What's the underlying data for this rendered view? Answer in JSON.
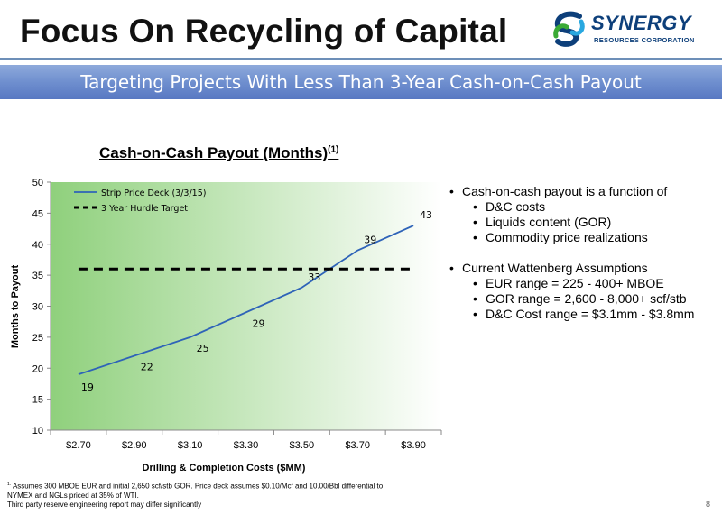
{
  "slide": {
    "title": "Focus On Recycling of Capital",
    "banner": "Targeting Projects With Less Than 3-Year Cash-on-Cash Payout",
    "page_number": "8"
  },
  "logo": {
    "name": "SYNERGY",
    "subtitle": "RESOURCES CORPORATION"
  },
  "chart_title": {
    "text": "Cash-on-Cash Payout (Months)",
    "superscript": "(1)"
  },
  "chart_data": {
    "type": "line",
    "title": "Cash-on-Cash Payout (Months)",
    "xlabel": "Drilling & Completion Costs ($MM)",
    "ylabel": "Months to Payout",
    "categories": [
      "$2.70",
      "$2.90",
      "$3.10",
      "$3.30",
      "$3.50",
      "$3.70",
      "$3.90"
    ],
    "ylim": [
      10,
      50
    ],
    "yticks": [
      10,
      15,
      20,
      25,
      30,
      35,
      40,
      45,
      50
    ],
    "grid": false,
    "legend_position": "top-left",
    "series": [
      {
        "name": "Strip Price Deck (3/3/15)",
        "values": [
          19,
          22,
          25,
          29,
          33,
          39,
          43
        ],
        "color": "#2e63b8",
        "style": "solid",
        "data_labels": [
          "19",
          "22",
          "25",
          "29",
          "33",
          "39",
          "43"
        ]
      },
      {
        "name": "3 Year Hurdle Target",
        "values": [
          36,
          36,
          36,
          36,
          36,
          36,
          36
        ],
        "color": "#000000",
        "style": "dashed"
      }
    ],
    "background_gradient": [
      "#8fd07c",
      "#ffffff"
    ]
  },
  "bullets": [
    {
      "text": "Cash-on-cash payout is a function of",
      "sub": [
        "D&C costs",
        "Liquids content (GOR)",
        "Commodity price realizations"
      ]
    },
    {
      "text": "Current Wattenberg Assumptions",
      "sub": [
        "EUR range = 225 - 400+ MBOE",
        "GOR range = 2,600 - 8,000+ scf/stb",
        "D&C Cost range = $3.1mm - $3.8mm"
      ]
    }
  ],
  "footnote": {
    "marker": "1.",
    "line1": "Assumes 300 MBOE EUR and initial 2,650 scf/stb GOR. Price deck assumes $0.10/Mcf and 10.00/Bbl differential to",
    "line2": "NYMEX and NGLs priced at 35% of WTI.",
    "line3": "Third party reserve engineering report may differ significantly"
  }
}
